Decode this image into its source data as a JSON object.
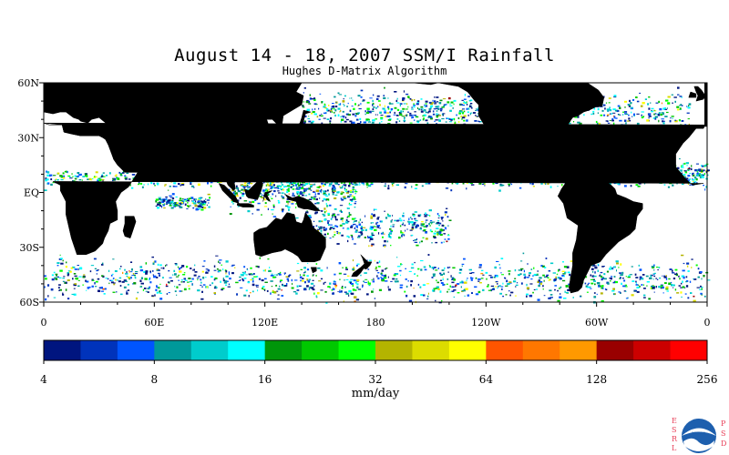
{
  "title": "August 14 - 18, 2007 SSM/I Rainfall",
  "subtitle": "Hughes D-Matrix Algorithm",
  "map": {
    "lat_labels": [
      "60N",
      "30N",
      "EQ",
      "30S",
      "60S"
    ],
    "lon_labels": [
      "0",
      "60E",
      "120E",
      "180",
      "120W",
      "60W",
      "0"
    ],
    "land_color": "#000000",
    "ocean_color": "#ffffff"
  },
  "colorbar": {
    "unit": "mm/day",
    "tick_labels": [
      "4",
      "8",
      "16",
      "32",
      "64",
      "128",
      "256"
    ],
    "colors": [
      "#00157f",
      "#0033bb",
      "#0055ff",
      "#00999a",
      "#00cccc",
      "#00ffff",
      "#00960a",
      "#00c800",
      "#00ff00",
      "#b4b400",
      "#dcdc00",
      "#ffff00",
      "#ff5500",
      "#ff7700",
      "#ff9900",
      "#990000",
      "#cc0000",
      "#ff0000"
    ]
  },
  "logo": {
    "left_text": [
      "E",
      "S",
      "R",
      "L"
    ],
    "right_text": [
      "P",
      "S",
      "D"
    ],
    "badge": "NOAA"
  }
}
